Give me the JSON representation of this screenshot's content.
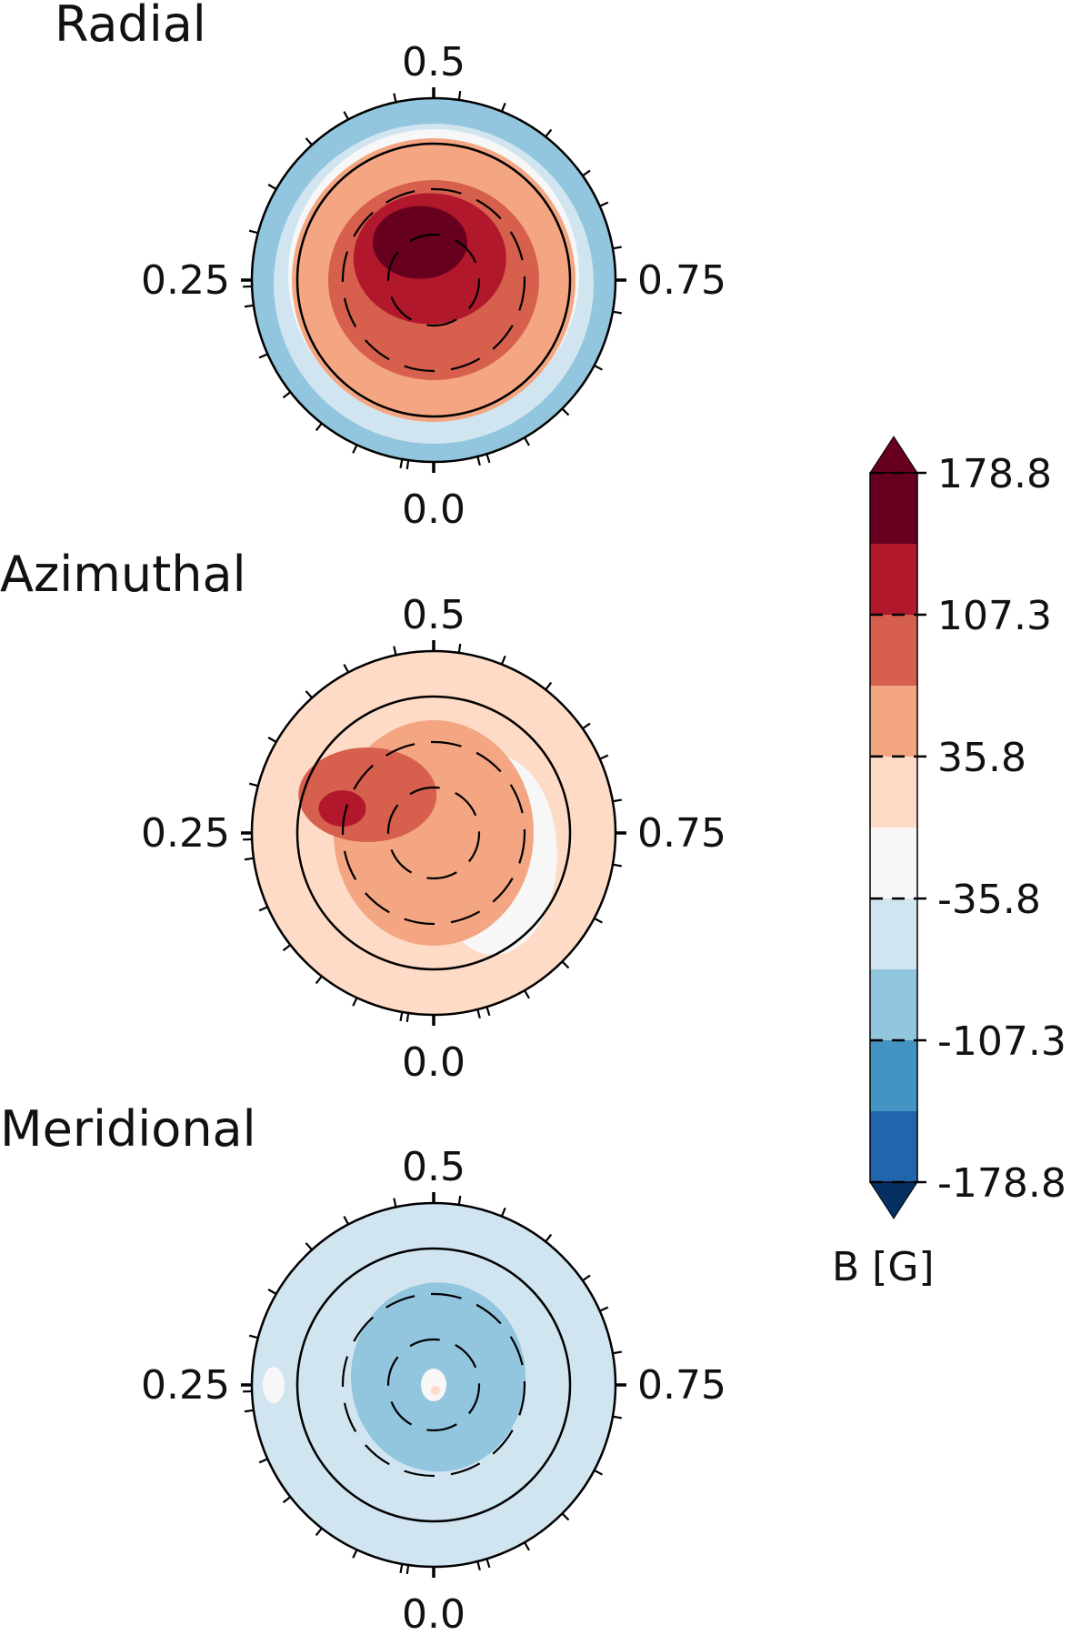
{
  "chart_data": {
    "type": "heatmap",
    "description_kind": "polar contour maps (ZDI magnetic field)",
    "panels": [
      {
        "title": "Radial",
        "phase_labels": {
          "top": "0.5",
          "left": "0.25",
          "right": "0.75",
          "bottom": "0.0"
        },
        "blobs": [
          {
            "r": 0.0,
            "ang": 0,
            "level": 71.5,
            "rx": 0.78,
            "ry": 0.78
          },
          {
            "r": 0.0,
            "ang": 0,
            "level": 107.3,
            "rx": 0.58,
            "ry": 0.55
          },
          {
            "r": 0.12,
            "ang": 100,
            "level": 143.0,
            "rx": 0.42,
            "ry": 0.36
          },
          {
            "r": 0.22,
            "ang": 110,
            "level": 178.8,
            "rx": 0.26,
            "ry": 0.2
          }
        ],
        "base_level": -71.5,
        "ring_levels": [
          {
            "from": 1.0,
            "to": 0.82,
            "level": -71.5
          },
          {
            "from": 0.9,
            "to": 0.82,
            "level": -35.8
          }
        ]
      },
      {
        "title": "Azimuthal",
        "phase_labels": {
          "top": "0.5",
          "left": "0.25",
          "right": "0.75",
          "bottom": "0.0"
        },
        "base_level": 35.8,
        "blobs": [
          {
            "r": 0.0,
            "ang": 0,
            "level": 71.5,
            "rx": 0.55,
            "ry": 0.62
          },
          {
            "r": 0.42,
            "ang": 150,
            "level": 107.3,
            "rx": 0.38,
            "ry": 0.26
          },
          {
            "r": 0.52,
            "ang": 165,
            "level": 143.0,
            "rx": 0.13,
            "ry": 0.1
          }
        ],
        "white_regions": [
          {
            "r": 0.35,
            "ang": -20,
            "rx": 0.35,
            "ry": 0.55
          },
          {
            "r": 0.1,
            "ang": 0,
            "rx": 0.15,
            "ry": 0.12
          }
        ]
      },
      {
        "title": "Meridional",
        "phase_labels": {
          "top": "0.5",
          "left": "0.25",
          "right": "0.75",
          "bottom": "0.0"
        },
        "base_level": -35.8,
        "blobs": [
          {
            "r": 0.05,
            "ang": 60,
            "level": -71.5,
            "rx": 0.48,
            "ry": 0.52
          }
        ],
        "white_regions": [
          {
            "r": 0.0,
            "ang": 0,
            "rx": 0.07,
            "ry": 0.09
          },
          {
            "r": 0.88,
            "ang": 180,
            "rx": 0.06,
            "ry": 0.1
          }
        ]
      }
    ],
    "colorbar": {
      "label": "B [G]",
      "ticks": [
        "178.8",
        "107.3",
        "35.8",
        "-35.8",
        "-107.3",
        "-178.8"
      ],
      "tick_values": [
        178.8,
        107.3,
        35.8,
        -35.8,
        -107.3,
        -178.8
      ],
      "range": [
        -178.8,
        178.8
      ],
      "levels": [
        -178.8,
        -143.0,
        -107.3,
        -71.5,
        -35.8,
        0.0,
        35.8,
        71.5,
        107.3,
        143.0,
        178.8
      ],
      "colors": [
        "#053061",
        "#2166ac",
        "#4393c3",
        "#92c5de",
        "#d1e5f0",
        "#f7f7f7",
        "#fddbc7",
        "#f4a582",
        "#d6604d",
        "#b2182b",
        "#67001f"
      ],
      "extend": "both"
    }
  }
}
